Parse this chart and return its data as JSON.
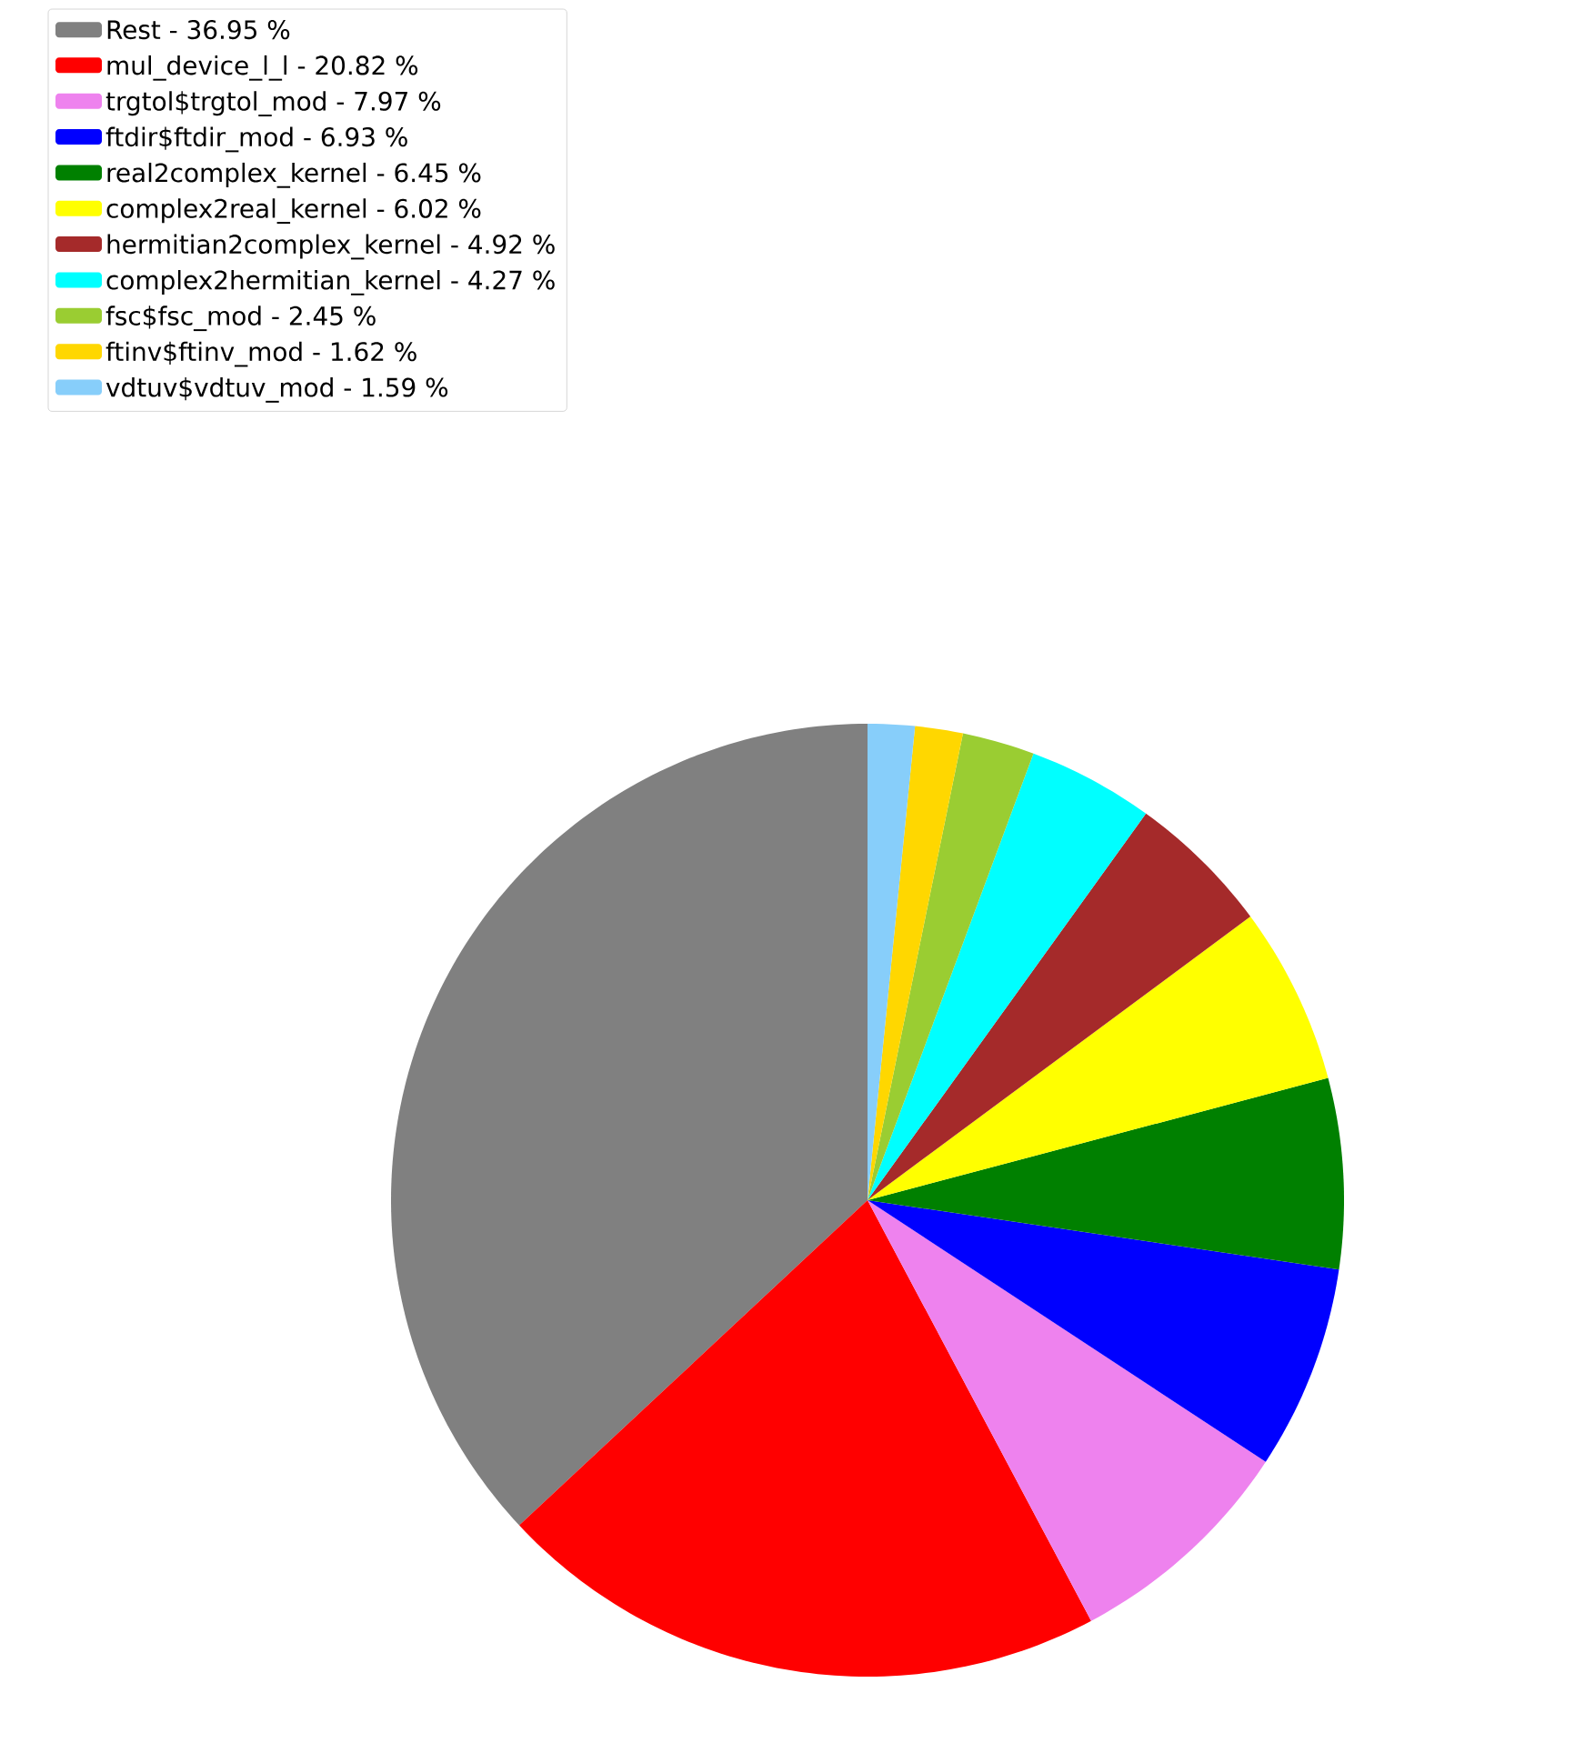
{
  "chart_data": {
    "type": "pie",
    "legend": "top left",
    "categories": [
      "Rest - 36.95 %",
      "mul_device_l_l - 20.82 %",
      "trgtol$trgtol_mod - 7.97 %",
      "ftdir$ftdir_mod - 6.93 %",
      "real2complex_kernel - 6.45 %",
      "complex2real_kernel - 6.02 %",
      "hermitian2complex_kernel - 4.92 %",
      "complex2hermitian_kernel - 4.27 %",
      "fsc$fsc_mod - 2.45 %",
      "ftinv$ftinv_mod - 1.62 %",
      "vdtuv$vdtuv_mod - 1.59 %"
    ],
    "values": [
      36.95,
      20.82,
      7.97,
      6.93,
      6.45,
      6.02,
      4.92,
      4.27,
      2.45,
      1.62,
      1.59
    ],
    "colors": [
      "#808080",
      "#ff0000",
      "#ee82ee",
      "#0000ff",
      "#008000",
      "#ffff00",
      "#a52a2a",
      "#00ffff",
      "#9acd32",
      "#ffd700",
      "#87cefa"
    ]
  }
}
